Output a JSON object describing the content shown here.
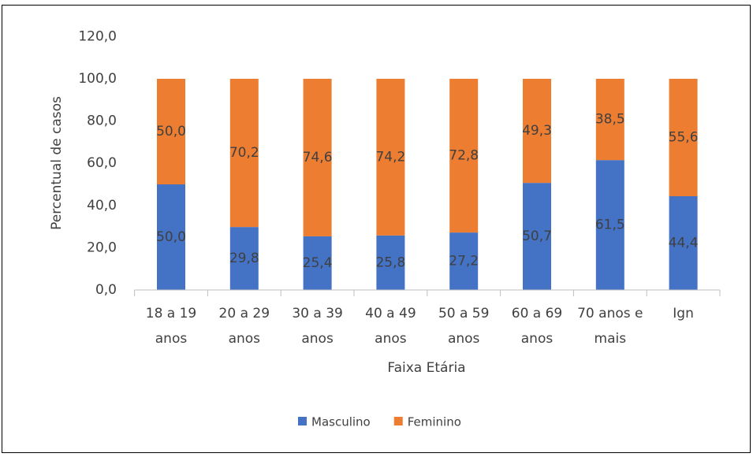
{
  "chart_data": {
    "type": "stacked_bar",
    "categories": [
      [
        "18 a 19",
        "anos"
      ],
      [
        "20 a 29",
        "anos"
      ],
      [
        "30 a 39",
        "anos"
      ],
      [
        "40 a 49",
        "anos"
      ],
      [
        "50 a 59",
        "anos"
      ],
      [
        "60 a 69",
        "anos"
      ],
      [
        "70 anos e",
        "mais"
      ],
      [
        "Ign"
      ]
    ],
    "series": [
      {
        "name": "Masculino",
        "color": "#4472c4",
        "values": [
          50.0,
          29.8,
          25.4,
          25.8,
          27.2,
          50.7,
          61.5,
          44.4
        ],
        "value_labels": [
          "50,0",
          "29,8",
          "25,4",
          "25,8",
          "27,2",
          "50,7",
          "61,5",
          "44,4"
        ]
      },
      {
        "name": "Feminino",
        "color": "#ed7d31",
        "values": [
          50.0,
          70.2,
          74.6,
          74.2,
          72.8,
          49.3,
          38.5,
          55.6
        ],
        "value_labels": [
          "50,0",
          "70,2",
          "74,6",
          "74,2",
          "72,8",
          "49,3",
          "38,5",
          "55,6"
        ]
      }
    ],
    "ylim": [
      0,
      120
    ],
    "yticks": [
      {
        "value": 0,
        "label": "0,0"
      },
      {
        "value": 20,
        "label": "20,0"
      },
      {
        "value": 40,
        "label": "40,0"
      },
      {
        "value": 60,
        "label": "60,0"
      },
      {
        "value": 80,
        "label": "80,0"
      },
      {
        "value": 100,
        "label": "100,0"
      },
      {
        "value": 120,
        "label": "120,0"
      }
    ],
    "y_label": "Percentual de casos",
    "x_label": "Faixa Etária",
    "grid": false,
    "legend": "bottom"
  }
}
